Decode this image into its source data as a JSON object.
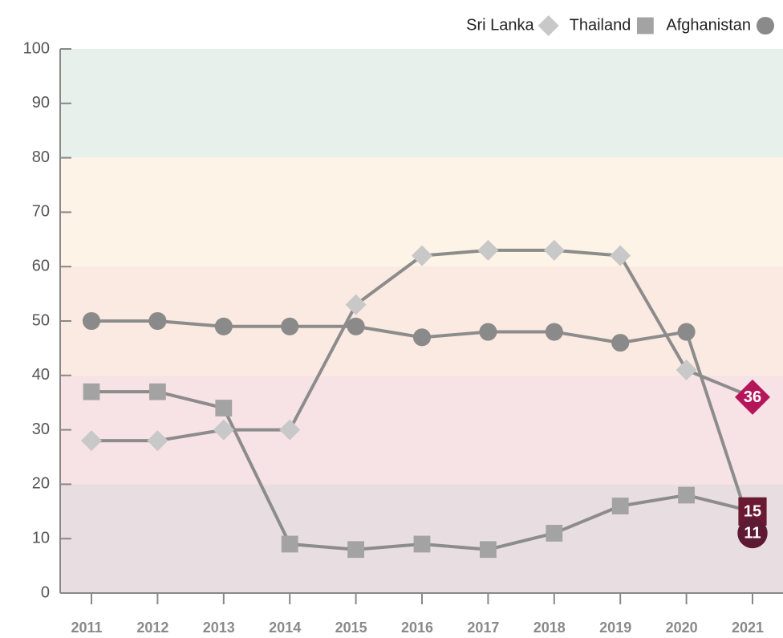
{
  "chart_data": {
    "type": "line",
    "categories": [
      "2011",
      "2012",
      "2013",
      "2014",
      "2015",
      "2016",
      "2017",
      "2018",
      "2019",
      "2020",
      "2021"
    ],
    "series": [
      {
        "name": "Sri Lanka",
        "marker": "diamond",
        "color": "#c8c8c8",
        "line_color": "#8c8c8c",
        "highlight_color": "#b5165a",
        "values": [
          28,
          28,
          30,
          30,
          53,
          62,
          63,
          63,
          62,
          41,
          36
        ]
      },
      {
        "name": "Thailand",
        "marker": "square",
        "color": "#a3a3a3",
        "line_color": "#8c8c8c",
        "highlight_color": "#6b1a34",
        "values": [
          37,
          37,
          34,
          9,
          8,
          9,
          8,
          11,
          16,
          18,
          15
        ]
      },
      {
        "name": "Afghanistan",
        "marker": "circle",
        "color": "#8a8a8a",
        "line_color": "#8c8c8c",
        "highlight_color": "#5e1a33",
        "values": [
          50,
          50,
          49,
          49,
          49,
          47,
          48,
          48,
          46,
          48,
          11
        ]
      }
    ],
    "ylim": [
      0,
      100
    ],
    "yticks": [
      0,
      10,
      20,
      30,
      40,
      50,
      60,
      70,
      80,
      90,
      100
    ],
    "bands": [
      {
        "from": 0,
        "to": 20,
        "color": "#e8dde0"
      },
      {
        "from": 20,
        "to": 40,
        "color": "#f7e3e6"
      },
      {
        "from": 40,
        "to": 60,
        "color": "#faeae1"
      },
      {
        "from": 60,
        "to": 80,
        "color": "#fdf3e6"
      },
      {
        "from": 80,
        "to": 100,
        "color": "#e7f0eb"
      }
    ],
    "legend": "top-right"
  }
}
